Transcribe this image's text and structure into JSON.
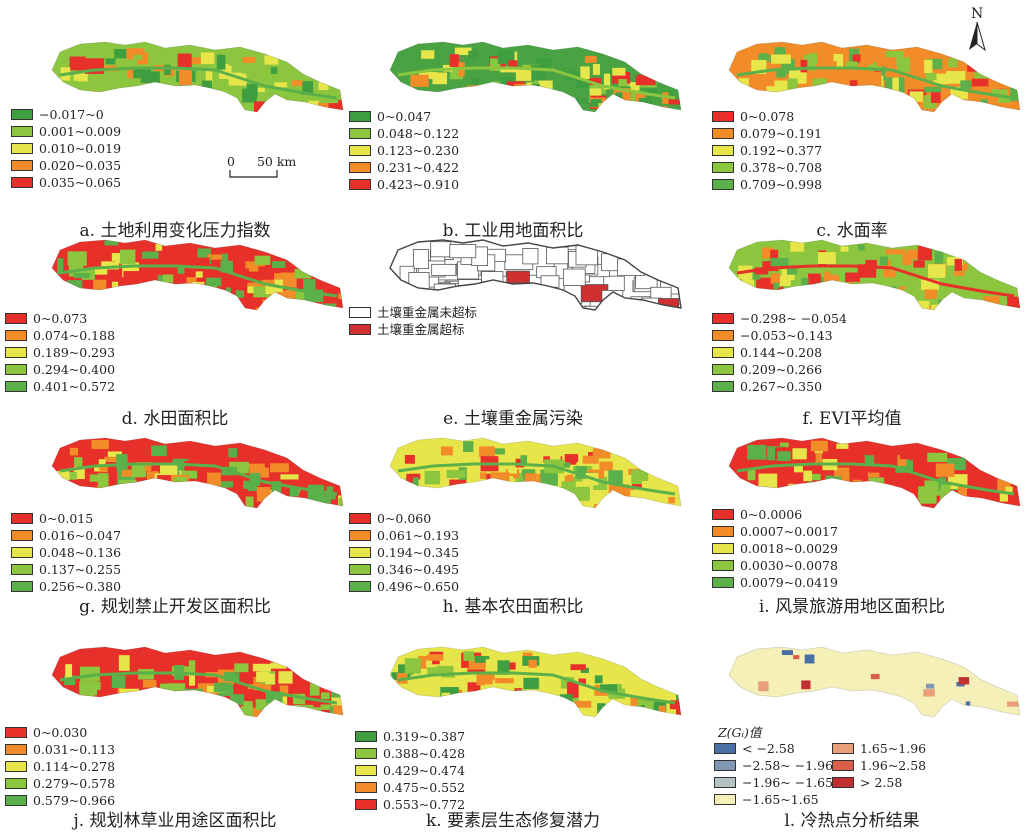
{
  "north_label": "N",
  "scale": {
    "zero": "0",
    "dist": "50 km"
  },
  "zgi_title": "Z(Gᵢ)值",
  "panels": [
    {
      "caption": "a. 土地利用变化压力指数",
      "base": "#8cc63f",
      "palette": [
        "#3f9e3f",
        "#8cc63f",
        "#e6e64a",
        "#f28c28",
        "#e8302a"
      ],
      "legend": [
        "−0.017~0",
        "0.001~0.009",
        "0.010~0.019",
        "0.020~0.035",
        "0.035~0.065"
      ],
      "colors": [
        "#3f9e3f",
        "#8cc63f",
        "#e6e64a",
        "#f28c28",
        "#e8302a"
      ]
    },
    {
      "caption": "b. 工业用地面积比",
      "base": "#49a343",
      "palette": [
        "#3f9e3f",
        "#8cc63f",
        "#e6e64a",
        "#f28c28",
        "#e8302a"
      ],
      "legend": [
        "0~0.047",
        "0.048~0.122",
        "0.123~0.230",
        "0.231~0.422",
        "0.423~0.910"
      ],
      "colors": [
        "#3f9e3f",
        "#8cc63f",
        "#e6e64a",
        "#f28c28",
        "#e8302a"
      ]
    },
    {
      "caption": "c. 水面率",
      "base": "#f28c28",
      "palette": [
        "#e8302a",
        "#f28c28",
        "#e6e64a",
        "#8cc63f",
        "#5bb04a"
      ],
      "legend": [
        "0~0.078",
        "0.079~0.191",
        "0.192~0.377",
        "0.378~0.708",
        "0.709~0.998"
      ],
      "colors": [
        "#e8302a",
        "#f28c28",
        "#e6e64a",
        "#8cc63f",
        "#5bb04a"
      ]
    },
    {
      "caption": "d. 水田面积比",
      "base": "#e8302a",
      "palette": [
        "#e8302a",
        "#f28c28",
        "#e6e64a",
        "#8cc63f",
        "#5bb04a"
      ],
      "legend": [
        "0~0.073",
        "0.074~0.188",
        "0.189~0.293",
        "0.294~0.400",
        "0.401~0.572"
      ],
      "colors": [
        "#e8302a",
        "#f28c28",
        "#e6e64a",
        "#8cc63f",
        "#5bb04a"
      ]
    },
    {
      "caption": "e. 土壤重金属污染",
      "base": "#ffffff",
      "palette": [
        "#ffffff",
        "#d03030"
      ],
      "legend": [
        "土壤重金属未超标",
        "土壤重金属超标"
      ],
      "colors": [
        "#ffffff",
        "#d03030"
      ]
    },
    {
      "caption": "f. EVI平均值",
      "base": "#8cc63f",
      "palette": [
        "#e8302a",
        "#f28c28",
        "#e6e64a",
        "#8cc63f",
        "#5bb04a"
      ],
      "legend": [
        "−0.298~ −0.054",
        "−0.053~0.143",
        "0.144~0.208",
        "0.209~0.266",
        "0.267~0.350"
      ],
      "colors": [
        "#e8302a",
        "#f28c28",
        "#e6e64a",
        "#8cc63f",
        "#5bb04a"
      ]
    },
    {
      "caption": "g. 规划禁止开发区面积比",
      "base": "#e8302a",
      "palette": [
        "#e8302a",
        "#f28c28",
        "#e6e64a",
        "#8cc63f",
        "#5bb04a"
      ],
      "legend": [
        "0~0.015",
        "0.016~0.047",
        "0.048~0.136",
        "0.137~0.255",
        "0.256~0.380"
      ],
      "colors": [
        "#e8302a",
        "#f28c28",
        "#e6e64a",
        "#8cc63f",
        "#5bb04a"
      ]
    },
    {
      "caption": "h. 基本农田面积比",
      "base": "#e6e64a",
      "palette": [
        "#e8302a",
        "#f28c28",
        "#e6e64a",
        "#8cc63f",
        "#5bb04a"
      ],
      "legend": [
        "0~0.060",
        "0.061~0.193",
        "0.194~0.345",
        "0.346~0.495",
        "0.496~0.650"
      ],
      "colors": [
        "#e8302a",
        "#f28c28",
        "#e6e64a",
        "#8cc63f",
        "#5bb04a"
      ]
    },
    {
      "caption": "i. 风景旅游用地区面积比",
      "base": "#e8302a",
      "palette": [
        "#e8302a",
        "#f28c28",
        "#e6e64a",
        "#8cc63f",
        "#5bb04a"
      ],
      "legend": [
        "0~0.0006",
        "0.0007~0.0017",
        "0.0018~0.0029",
        "0.0030~0.0078",
        "0.0079~0.0419"
      ],
      "colors": [
        "#e8302a",
        "#f28c28",
        "#e6e64a",
        "#8cc63f",
        "#5bb04a"
      ]
    },
    {
      "caption": "j. 规划林草业用途区面积比",
      "base": "#e8302a",
      "palette": [
        "#e8302a",
        "#f28c28",
        "#e6e64a",
        "#8cc63f",
        "#5bb04a"
      ],
      "legend": [
        "0~0.030",
        "0.031~0.113",
        "0.114~0.278",
        "0.279~0.578",
        "0.579~0.966"
      ],
      "colors": [
        "#e8302a",
        "#f28c28",
        "#e6e64a",
        "#8cc63f",
        "#5bb04a"
      ]
    },
    {
      "caption": "k. 要素层生态修复潜力",
      "base": "#e6e64a",
      "palette": [
        "#3f9e3f",
        "#8cc63f",
        "#e6e64a",
        "#f28c28",
        "#e8302a"
      ],
      "legend": [
        "0.319~0.387",
        "0.388~0.428",
        "0.429~0.474",
        "0.475~0.552",
        "0.553~0.772"
      ],
      "colors": [
        "#3f9e3f",
        "#8cc63f",
        "#e6e64a",
        "#f28c28",
        "#e8302a"
      ]
    },
    {
      "caption": "l. 冷热点分析结果",
      "base": "#f5f0b8",
      "palette": [
        "#f5f0b8",
        "#4a6fa5",
        "#7f97b3",
        "#b3c2c2",
        "#e8a07a",
        "#d8604a",
        "#c03030"
      ],
      "legend": [
        "< −2.58",
        "−2.58~ −1.96",
        "−1.96~ −1.65",
        "−1.65~1.65",
        "1.65~1.96",
        "1.96~2.58",
        "> 2.58"
      ],
      "colors": [
        "#4a6fa5",
        "#7f97b3",
        "#b3c2c2",
        "#f5f0b8",
        "#e8a07a",
        "#d8604a",
        "#c03030"
      ]
    }
  ]
}
